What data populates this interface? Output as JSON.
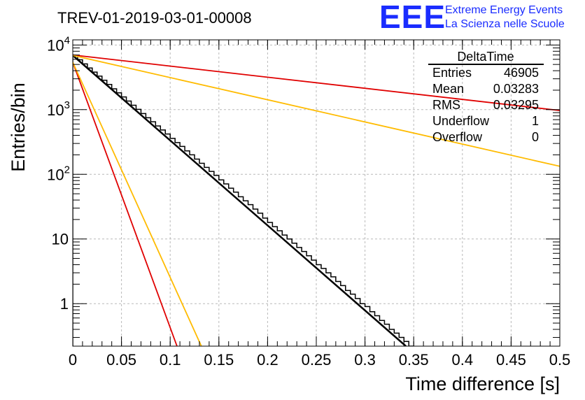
{
  "header": {
    "title": "TREV-01-2019-03-01-00008",
    "logo_text": "EEE",
    "logo_line1": "Extreme Energy Events",
    "logo_line2": "La Scienza nelle Scuole"
  },
  "stats_box": {
    "name": "DeltaTime",
    "rows": [
      {
        "label": "Entries",
        "value": "46905"
      },
      {
        "label": "Mean",
        "value": "0.03283"
      },
      {
        "label": "RMS",
        "value": "0.03295"
      },
      {
        "label": "Underflow",
        "value": "1"
      },
      {
        "label": "Overflow",
        "value": "0"
      }
    ]
  },
  "chart_data": {
    "type": "line",
    "xlabel": "Time difference [s]",
    "ylabel": "Entries/bin",
    "xlim": [
      0,
      0.5
    ],
    "ylim": [
      0.22,
      12000
    ],
    "log_y": true,
    "grid": true,
    "x_ticks": [
      "0",
      "0.05",
      "0.1",
      "0.15",
      "0.2",
      "0.25",
      "0.3",
      "0.35",
      "0.4",
      "0.45",
      "0.5"
    ],
    "y_ticks": [
      {
        "value": 1,
        "label": "1"
      },
      {
        "value": 10,
        "label": "10"
      },
      {
        "value": 100,
        "label": "10^2"
      },
      {
        "value": 1000,
        "label": "10^3"
      },
      {
        "value": 10000,
        "label": "10^4"
      }
    ],
    "histogram": {
      "bin_width": 0.005,
      "values": [
        6800,
        5900,
        5100,
        4400,
        3800,
        3300,
        2850,
        2450,
        2100,
        1820,
        1570,
        1360,
        1170,
        1010,
        870,
        750,
        650,
        560,
        485,
        420,
        360,
        310,
        270,
        230,
        200,
        172,
        148,
        128,
        111,
        96,
        82,
        71,
        61,
        53,
        45,
        39,
        34,
        29,
        25,
        21,
        18,
        15.5,
        13.4,
        11.5,
        10,
        8.6,
        7.4,
        6.4,
        5.5,
        4.7,
        4,
        3.5,
        3,
        2.6,
        2.2,
        1.9,
        1.6,
        1.4,
        1.2,
        1,
        0.9,
        0.75,
        0.65,
        0.55,
        0.48,
        0.4,
        0.35,
        0.3,
        0.26,
        0.22
      ]
    },
    "fit_lines": [
      {
        "color": "#000000",
        "width": 2.5,
        "points": [
          [
            0,
            6900
          ],
          [
            0.342,
            0.22
          ]
        ]
      },
      {
        "color": "#e00000",
        "width": 1.8,
        "points": [
          [
            0,
            7000
          ],
          [
            0.5,
            970
          ]
        ]
      },
      {
        "color": "#ffbb00",
        "width": 1.8,
        "points": [
          [
            0,
            6900
          ],
          [
            0.5,
            133
          ]
        ]
      },
      {
        "color": "#e00000",
        "width": 1.8,
        "points": [
          [
            0,
            5400
          ],
          [
            0.107,
            0.22
          ]
        ]
      },
      {
        "color": "#ffbb00",
        "width": 1.8,
        "points": [
          [
            0,
            5400
          ],
          [
            0.132,
            0.22
          ]
        ]
      }
    ]
  }
}
